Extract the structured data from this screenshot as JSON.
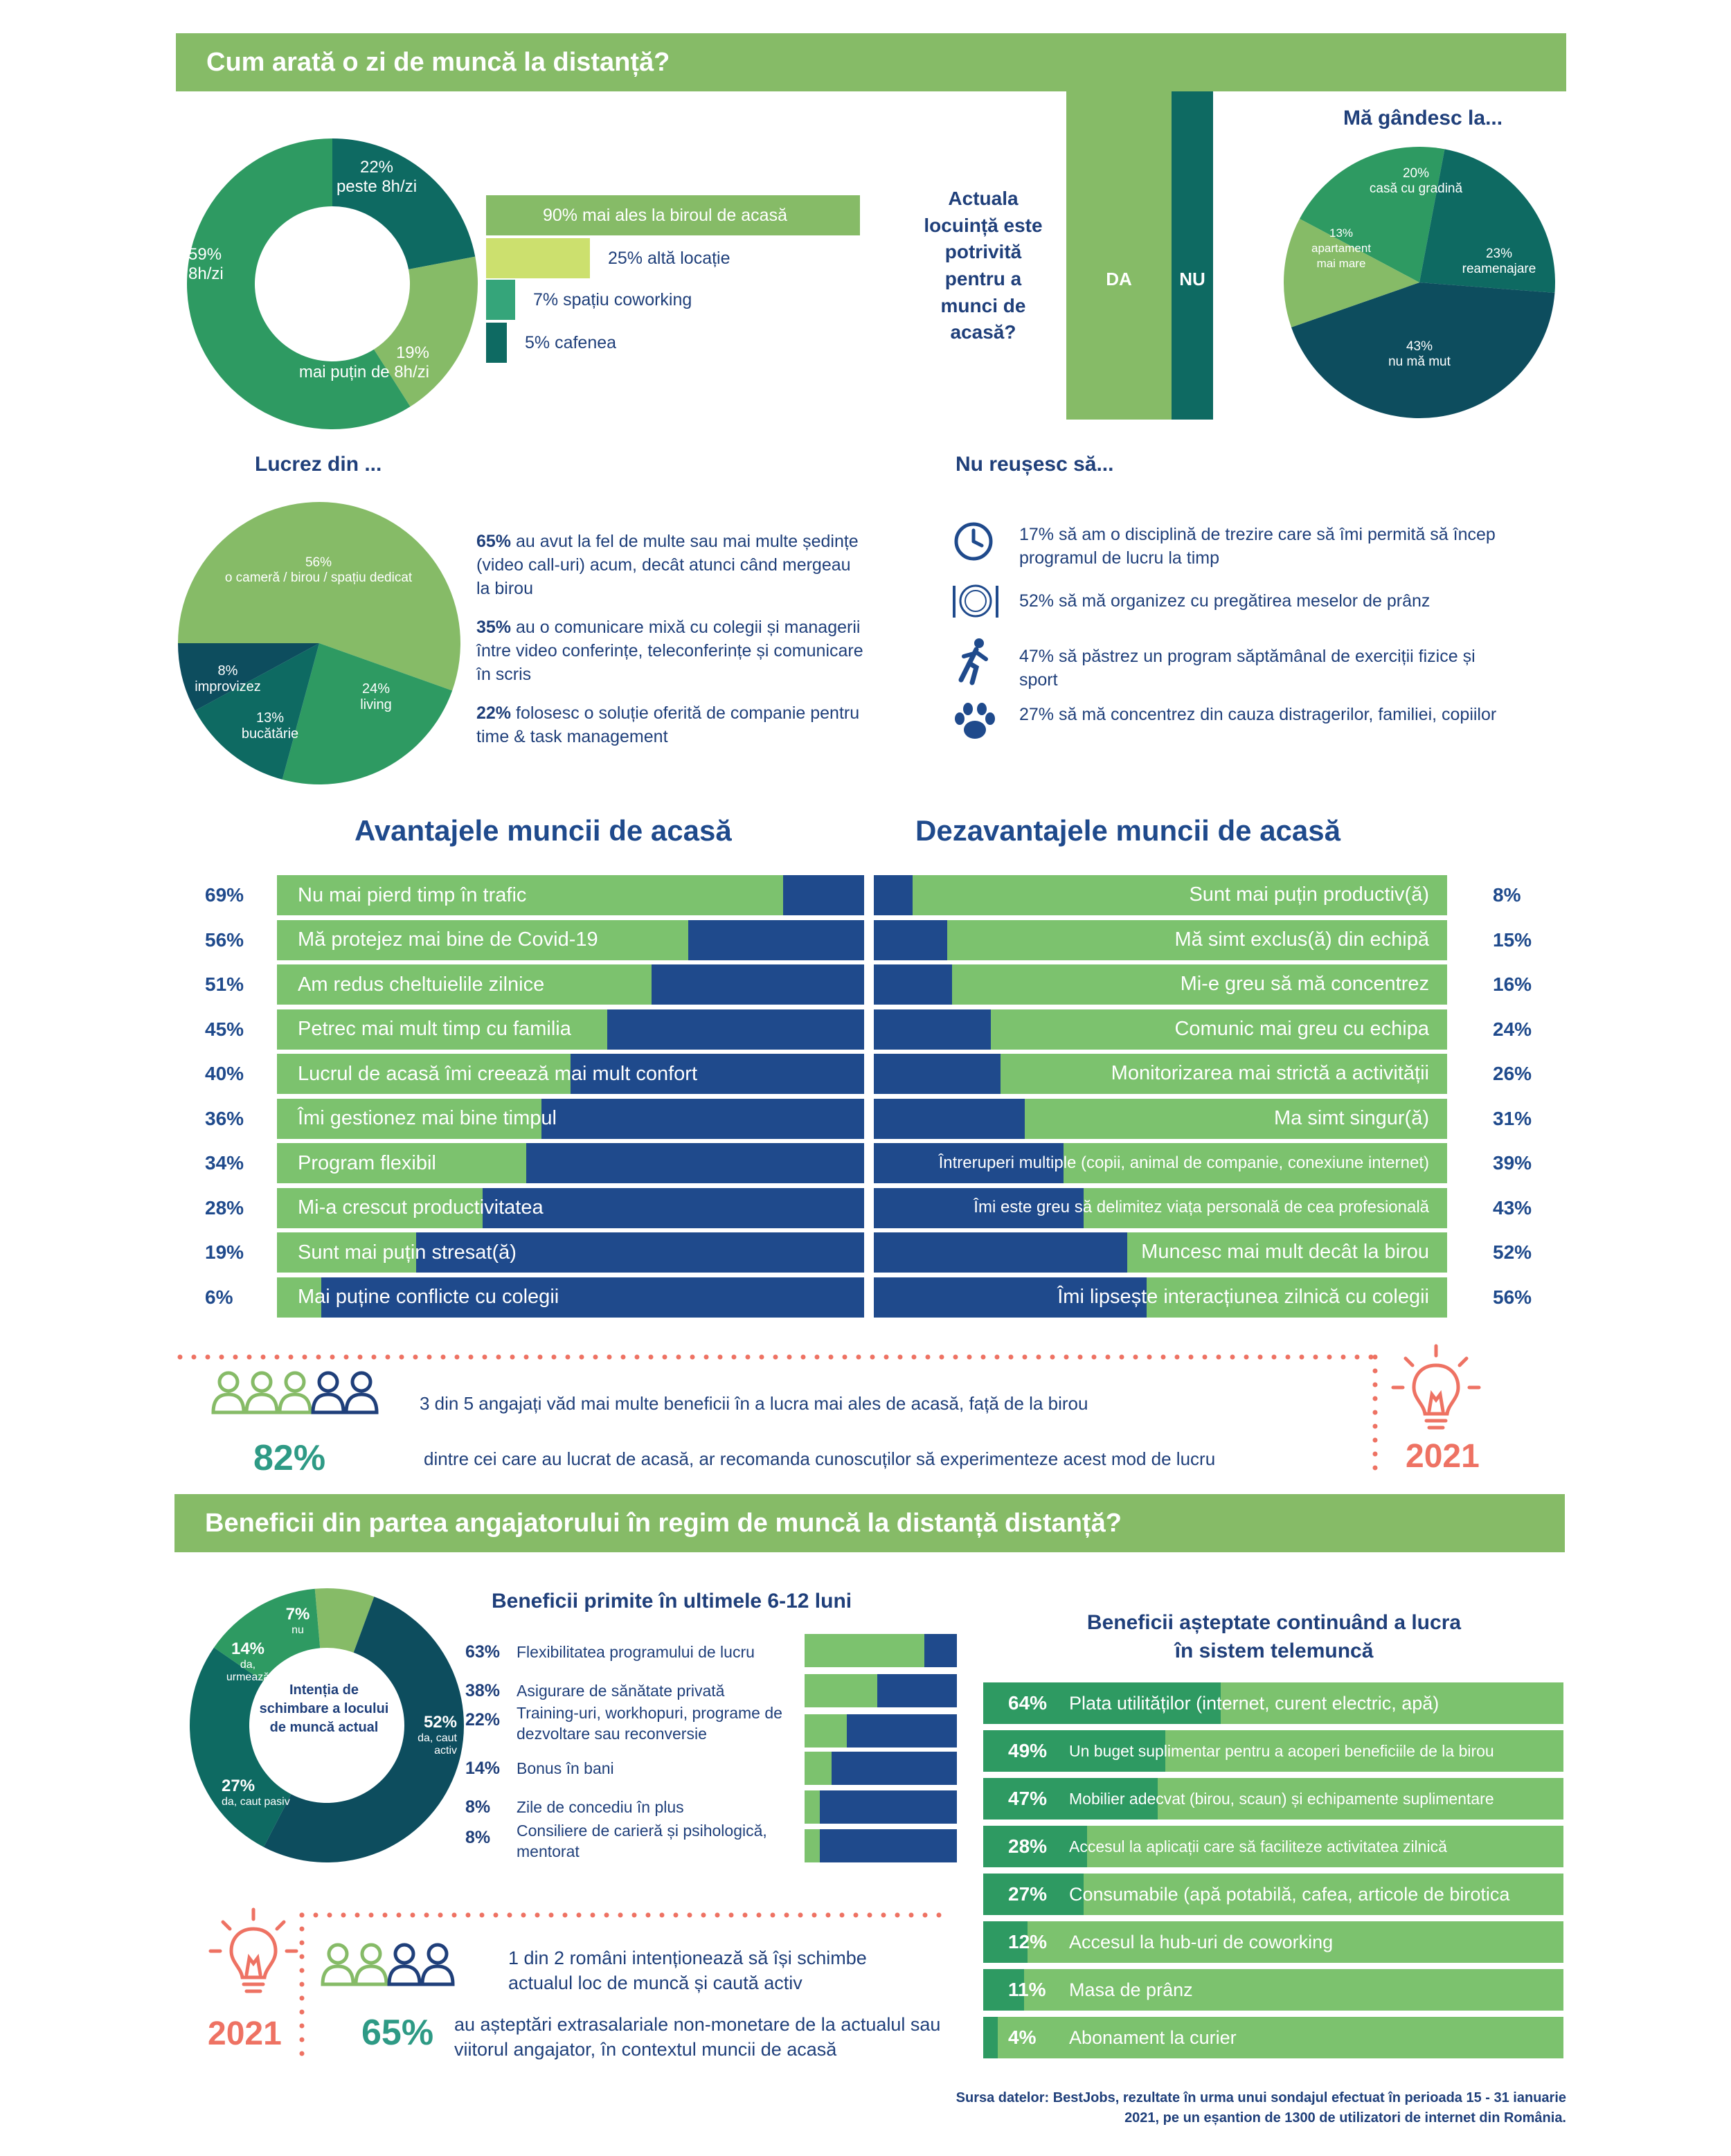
{
  "section1": {
    "title": "Cum arată o zi de muncă la distanță?"
  },
  "hours_donut": {
    "chart_data": {
      "type": "pie",
      "labels": [
        "peste 8h/zi",
        "mai puțin de 8h/zi",
        "8h/zi"
      ],
      "values": [
        22,
        19,
        59
      ],
      "display": [
        "22%",
        "19%",
        "59%"
      ],
      "colors": [
        "#0e6a62",
        "#86bb67",
        "#2e9a62"
      ]
    }
  },
  "location_bars": {
    "chart_data": {
      "type": "bar",
      "categories": [
        "mai ales la biroul de acasă",
        "altă locație",
        "spațiu coworking",
        "cafenea"
      ],
      "values": [
        90,
        25,
        7,
        5
      ],
      "labels": [
        "90% mai ales la biroul de acasă",
        "25% altă locație",
        "7% spațiu coworking",
        "5% cafenea"
      ],
      "colors": [
        "#86bb67",
        "#cce06e",
        "#35a57a",
        "#0e6a62"
      ]
    }
  },
  "housing": {
    "question": "Actuala locuință este potrivită pentru a munci de acasă?",
    "chart_data": {
      "type": "bar",
      "categories": [
        "DA",
        "NU"
      ],
      "colors": [
        "#86bb67",
        "#0e6a62"
      ]
    }
  },
  "thinking_pie": {
    "title": "Mă gândesc la...",
    "chart_data": {
      "type": "pie",
      "labels": [
        "casă cu gradină",
        "reamenajare",
        "nu mă mut",
        "apartament mai mare"
      ],
      "values": [
        20,
        23,
        43,
        13
      ],
      "display": [
        "20%",
        "23%",
        "43%",
        "13%"
      ],
      "colors": [
        "#2e9a62",
        "#0e6a62",
        "#0d4d5e",
        "#86bb67"
      ]
    }
  },
  "workfrom": {
    "title": "Lucrez din ...",
    "chart_data": {
      "type": "pie",
      "labels": [
        "o cameră / birou / spațiu dedicat",
        "living",
        "bucătărie",
        "improvizez"
      ],
      "values": [
        56,
        24,
        13,
        8
      ],
      "display": [
        "56%",
        "24%",
        "13%",
        "8%"
      ],
      "colors": [
        "#86bb67",
        "#2e9a62",
        "#0e6a62",
        "#0d4d5e"
      ]
    },
    "facts": [
      {
        "pct": "65%",
        "text": " au avut la fel de multe sau mai multe ședințe (video call-uri) acum, decât atunci când mergeau la birou"
      },
      {
        "pct": "35%",
        "text": " au o comunicare mixă cu colegii și managerii între video conferințe, teleconferințe și comunicare în scris"
      },
      {
        "pct": "22%",
        "text": " folosesc o soluție oferită de companie pentru time & task management"
      }
    ]
  },
  "cannot": {
    "title": "Nu reușesc să...",
    "items": [
      {
        "icon": "clock-icon",
        "text": "17% să am o disciplină de trezire care să îmi permită să încep programul de lucru la timp"
      },
      {
        "icon": "plate-icon",
        "text": "52% să mă organizez cu pregătirea meselor de prânz"
      },
      {
        "icon": "runner-icon",
        "text": "47% să păstrez un program săptămânal de exerciții fizice și sport"
      },
      {
        "icon": "paw-icon",
        "text": "27% să mă concentrez din cauza distragerilor, familiei, copiilor"
      }
    ]
  },
  "advantages": {
    "title": "Avantajele muncii de acasă",
    "chart_data": {
      "type": "bar",
      "categories": [
        "Nu mai pierd timp în trafic",
        "Mă protejez mai bine de Covid-19",
        "Am redus cheltuielile zilnice",
        "Petrec mai mult timp cu familia",
        "Lucrul de acasă îmi creează mai mult confort",
        "Îmi gestionez mai bine timpul",
        "Program flexibil",
        "Mi-a crescut productivitatea",
        "Sunt mai puțin stresat(ă)",
        "Mai puține conflicte cu colegii"
      ],
      "values": [
        69,
        56,
        51,
        45,
        40,
        36,
        34,
        28,
        19,
        6
      ],
      "display": [
        "69%",
        "56%",
        "51%",
        "45%",
        "40%",
        "36%",
        "34%",
        "28%",
        "19%",
        "6%"
      ]
    }
  },
  "disadvantages": {
    "title": "Dezavantajele muncii de acasă",
    "chart_data": {
      "type": "bar",
      "categories": [
        "Sunt mai puțin productiv(ă)",
        "Mă simt exclus(ă) din echipă",
        "Mi-e greu să mă concentrez",
        "Comunic mai greu cu  echipa",
        "Monitorizarea mai strictă a activității",
        "Ma simt singur(ă)",
        "Întreruperi multiple (copii,  animal de companie, conexiune internet)",
        "Îmi este greu să delimitez viața personală de cea profesională",
        "Muncesc mai mult decât la birou",
        "Îmi lipsește interacțiunea zilnică cu colegii"
      ],
      "values": [
        8,
        15,
        16,
        24,
        26,
        31,
        39,
        43,
        52,
        56
      ],
      "display": [
        "8%",
        "15%",
        "16%",
        "24%",
        "26%",
        "31%",
        "39%",
        "43%",
        "52%",
        "56%"
      ]
    }
  },
  "callout1": {
    "line1": "3 din 5 angajați văd mai multe beneficii în a lucra mai ales de acasă, față de la birou",
    "pct": "82%",
    "line2": "dintre cei care au lucrat de acasă, ar recomanda cunoscuților să experimenteze acest mod de lucru",
    "year": "2021"
  },
  "section2": {
    "title": "Beneficii din partea angajatorului în regim de muncă la distanță distanță?"
  },
  "change_donut": {
    "center": "Intenția de schimbare a locului de muncă actual",
    "chart_data": {
      "type": "pie",
      "labels": [
        "nu",
        "da, caut activ",
        "da, caut pasiv",
        "da, urmează"
      ],
      "values": [
        7,
        52,
        27,
        14
      ],
      "display": [
        "7%",
        "52%",
        "27%",
        "14%"
      ],
      "colors": [
        "#86bb67",
        "#0d4d5e",
        "#0e6a62",
        "#2e9a62"
      ]
    }
  },
  "received": {
    "title": "Beneficii primite în ultimele 6-12 luni",
    "chart_data": {
      "type": "bar",
      "categories": [
        "Flexibilitatea programului de lucru",
        "Asigurare de sănătate privată",
        "Training-uri, workhopuri, programe de dezvoltare sau reconversie",
        "Bonus în bani",
        "Zile de concediu în plus",
        "Consiliere de carieră și psihologică, mentorat"
      ],
      "values": [
        63,
        38,
        22,
        14,
        8,
        8
      ],
      "display": [
        "63%",
        "38%",
        "22%",
        "14%",
        "8%",
        "8%"
      ]
    }
  },
  "expected": {
    "title": "Beneficii așteptate continuând a lucra în sistem telemuncă",
    "chart_data": {
      "type": "bar",
      "categories": [
        "Plata utilităților (internet, curent electric, apă)",
        "Un buget suplimentar pentru a acoperi beneficiile de la birou",
        "Mobilier adecvat (birou, scaun) și echipamente suplimentare",
        "Accesul la aplicații care să faciliteze activitatea zilnică",
        "Consumabile (apă potabilă, cafea, articole de birotica",
        "Accesul la hub-uri de coworking",
        "Masa de prânz",
        "Abonament la curier"
      ],
      "values": [
        64,
        49,
        47,
        28,
        27,
        12,
        11,
        4
      ],
      "display": [
        "64%",
        "49%",
        "47%",
        "28%",
        "27%",
        "12%",
        "11%",
        "4%"
      ]
    }
  },
  "callout2": {
    "year": "2021",
    "line1": "1 din 2 români intenționează să își schimbe actualul loc de muncă și caută activ",
    "pct": "65%",
    "line2": "au așteptări extrasalariale non-monetare de la actualul sau viitorul angajator, în contextul muncii de acasă"
  },
  "source": "Sursa datelor: BestJobs, rezultate în urma unui sondajul efectuat în perioada 15 - 31 ianuarie 2021, pe un eșantion de 1300 de utilizatori de internet din România."
}
